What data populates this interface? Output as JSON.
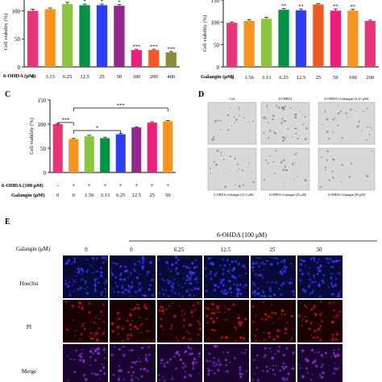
{
  "panels": {
    "c": {
      "letter": "C"
    },
    "d": {
      "letter": "D",
      "top_labels": [
        "Ctrl",
        "6-OHDA",
        "6-OHDA+Galangin (6.25 μM)"
      ],
      "bottom_labels": [
        "6-OHDA+Galangin (12.5 μM)",
        "6-OHDA+Galangin (25 μM)",
        "6-OHDA+Galangin (50 μM)"
      ]
    },
    "e": {
      "letter": "E",
      "header": "6-OHDA  (100 μM)",
      "galangin_label": "Galangin (μM)",
      "columns": [
        "0",
        "0",
        "6.25",
        "12.5",
        "25",
        "50"
      ],
      "rows": [
        "Hoechst",
        "PI",
        "Merge"
      ]
    }
  },
  "chart_data": [
    {
      "type": "bar",
      "panel": "A",
      "ylabel": "Cell viability (%)",
      "ylim": [
        0,
        125
      ],
      "yticks": [
        0,
        50,
        100
      ],
      "x_row_label": "6-OHDA (μM)",
      "categories": [
        "0",
        "3.13",
        "6.25",
        "12.5",
        "25",
        "50",
        "100",
        "200",
        "400"
      ],
      "values": [
        100,
        103,
        112,
        110,
        110,
        109,
        30,
        30,
        26
      ],
      "errors": [
        3,
        2,
        3,
        2,
        2,
        2,
        1.5,
        1.5,
        1.5
      ],
      "significance": [
        "",
        "",
        "**",
        "*",
        "*",
        "*",
        "***",
        "***",
        "***"
      ],
      "colors": [
        "#e8357a",
        "#f7941d",
        "#8cc63f",
        "#009245",
        "#2e3ef5",
        "#92278f",
        "#ed1e79",
        "#f15a24",
        "#8c8c3c"
      ]
    },
    {
      "type": "bar",
      "panel": "B",
      "ylabel": "Cell viability (%)",
      "ylim": [
        0,
        150
      ],
      "yticks": [
        0,
        50,
        100,
        150
      ],
      "x_row_label": "Galangin (μM)",
      "categories": [
        "0",
        "1.56",
        "3.13",
        "6.25",
        "12.5",
        "25",
        "50",
        "100",
        "200"
      ],
      "values": [
        99,
        103,
        108,
        128,
        127,
        140,
        126,
        126,
        103
      ],
      "errors": [
        2,
        3,
        3,
        3,
        3,
        1.5,
        4,
        3,
        2
      ],
      "significance": [
        "",
        "",
        "",
        "**",
        "**",
        "",
        "**",
        "**",
        ""
      ],
      "colors": [
        "#e8357a",
        "#f7941d",
        "#8cc63f",
        "#009245",
        "#2e3ef5",
        "#f15a24",
        "#ed1e79",
        "#f7941d",
        "#e8357a"
      ]
    },
    {
      "type": "bar",
      "panel": "C",
      "ylabel": "Cell viability (%)",
      "ylim": [
        0,
        150
      ],
      "yticks": [
        0,
        50,
        100,
        150
      ],
      "row1_label": "6-OHDA (100 μM)",
      "row1_values": [
        "-",
        "+",
        "+",
        "+",
        "+",
        "+",
        "+",
        "+"
      ],
      "row2_label": "Galangin (μM)",
      "categories": [
        "0",
        "0",
        "1.56",
        "3.13",
        "6.25",
        "12.5",
        "25",
        "50"
      ],
      "values": [
        100,
        69,
        75,
        71,
        79,
        93,
        103,
        106
      ],
      "errors": [
        1.5,
        1.5,
        2,
        2,
        2,
        1.5,
        2,
        1.5
      ],
      "colors": [
        "#e8357a",
        "#f7941d",
        "#8cc63f",
        "#009245",
        "#2e3ef5",
        "#92278f",
        "#ed1e79",
        "#f7941d"
      ],
      "brackets": [
        {
          "from": 0,
          "to": 1,
          "label": "***"
        },
        {
          "from": 1,
          "to": 4,
          "label": "*"
        },
        {
          "from": 1,
          "to": 7,
          "label": "***"
        }
      ]
    }
  ]
}
